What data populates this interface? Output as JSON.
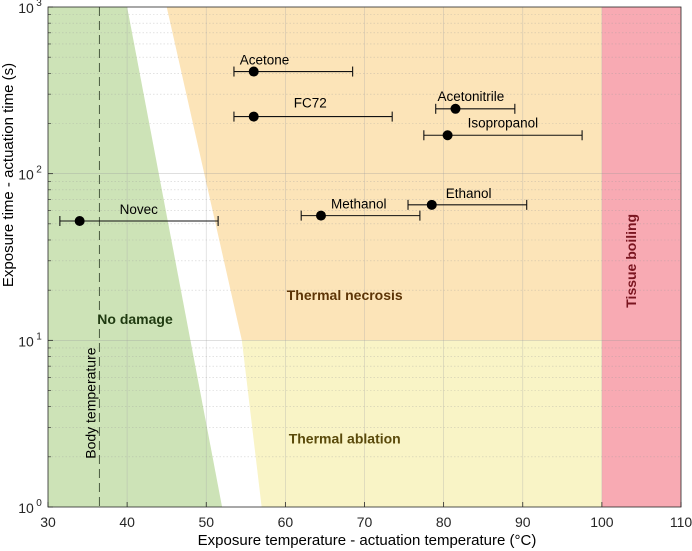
{
  "chart_data": {
    "type": "scatter",
    "xlabel": "Exposure temperature - actuation temperature (°C)",
    "ylabel": "Exposure time - actuation time (s)",
    "xlim": [
      30,
      110
    ],
    "ylim": [
      1,
      1000
    ],
    "yscale": "log",
    "x_ticks": [
      "30",
      "40",
      "50",
      "60",
      "70",
      "80",
      "90",
      "100",
      "110"
    ],
    "y_ticks": [
      {
        "base": "10",
        "exp": "0"
      },
      {
        "base": "10",
        "exp": "1"
      },
      {
        "base": "10",
        "exp": "2"
      },
      {
        "base": "10",
        "exp": "3"
      }
    ],
    "grid": true,
    "points": [
      {
        "name": "Acetone",
        "x": 56,
        "y": 410,
        "xerr_low": 53.5,
        "xerr_high": 68.5
      },
      {
        "name": "Acetonitrile",
        "x": 81.5,
        "y": 245,
        "xerr_low": 79,
        "xerr_high": 89
      },
      {
        "name": "FC72",
        "x": 56,
        "y": 220,
        "xerr_low": 53.5,
        "xerr_high": 73.5
      },
      {
        "name": "Isopropanol",
        "x": 80.5,
        "y": 170,
        "xerr_low": 77.5,
        "xerr_high": 97.5
      },
      {
        "name": "Ethanol",
        "x": 78.5,
        "y": 65,
        "xerr_low": 75.5,
        "xerr_high": 90.5
      },
      {
        "name": "Methanol",
        "x": 64.5,
        "y": 56,
        "xerr_low": 62,
        "xerr_high": 77
      },
      {
        "name": "Novec",
        "x": 34,
        "y": 52,
        "xerr_low": 31.5,
        "xerr_high": 51.5
      }
    ],
    "regions": [
      {
        "name": "No damage",
        "color": "#cde3b7"
      },
      {
        "name": "Thermal necrosis",
        "color": "#fce4b8"
      },
      {
        "name": "Thermal ablation",
        "color": "#f9f4c6"
      },
      {
        "name": "Tissue boiling",
        "color": "#f8aab3"
      }
    ],
    "reference_lines": [
      {
        "name": "Body temperature",
        "x": 36.5,
        "style": "dashed"
      }
    ],
    "region_label_colors": {
      "No damage": "#1f3a10",
      "Thermal necrosis": "#5c3406",
      "Thermal ablation": "#5a4a0a",
      "Tissue boiling": "#7a1520"
    }
  }
}
